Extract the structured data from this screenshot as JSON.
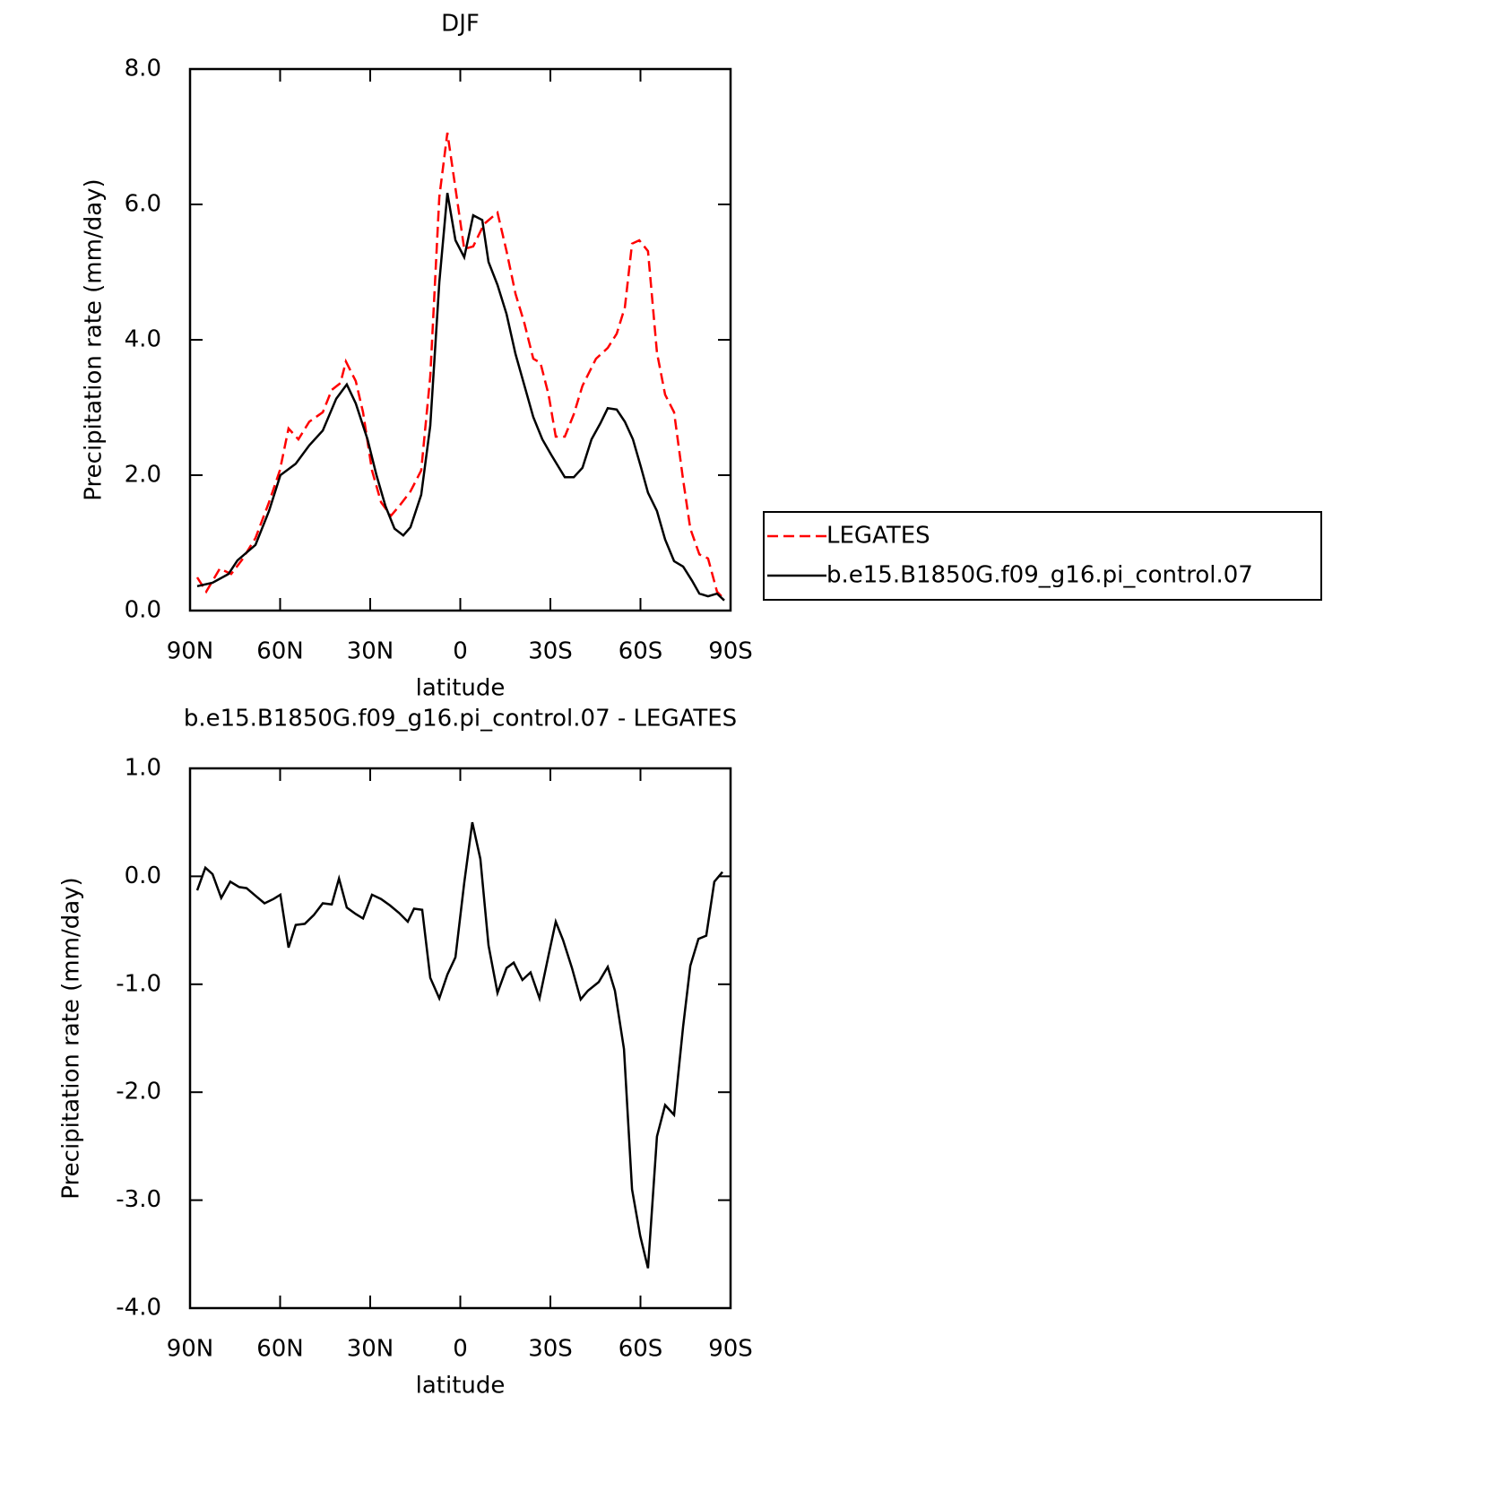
{
  "chart_data": [
    {
      "type": "line",
      "title": "DJF",
      "x_label": "latitude",
      "y_label": "Precipitation rate (mm/day)",
      "xlim": [
        90,
        -90
      ],
      "xticks": [
        {
          "value": 90,
          "label": "90N"
        },
        {
          "value": 60,
          "label": "60N"
        },
        {
          "value": 30,
          "label": "30N"
        },
        0,
        {
          "value": -30,
          "label": "30S"
        },
        {
          "value": -60,
          "label": "60S"
        },
        {
          "value": -90,
          "label": "90S"
        }
      ],
      "ylim": [
        0,
        8
      ],
      "yticks": [
        {
          "value": 0,
          "label": "0.0"
        },
        {
          "value": 2,
          "label": "2.0"
        },
        {
          "value": 4,
          "label": "4.0"
        },
        {
          "value": 6,
          "label": "6.0"
        },
        {
          "value": 8,
          "label": "8.0"
        }
      ],
      "legend": "outside-right",
      "series": [
        {
          "name": "LEGATES",
          "color": "#ff0000",
          "dashed": true,
          "x": [
            87.6,
            84.6,
            80.1,
            76.3,
            72.7,
            68.2,
            63.7,
            60.1,
            57.2,
            53.9,
            50.3,
            45.8,
            42.8,
            39.9,
            38.1,
            34.8,
            32.4,
            29.4,
            26.4,
            23.1,
            20.4,
            16.6,
            13,
            10,
            7,
            4.3,
            1.6,
            -1.3,
            -4.3,
            -7.9,
            -12.4,
            -15.4,
            -18.4,
            -21.3,
            -24.3,
            -26.7,
            -29.4,
            -31.8,
            -34.8,
            -37.8,
            -40.7,
            -45.2,
            -49.1,
            -52.1,
            -54.8,
            -57.2,
            -59.6,
            -62.5,
            -65.5,
            -68.2,
            -71.2,
            -74.2,
            -76.6,
            -79.6,
            -82.5,
            -85.5,
            -87.9
          ],
          "values": [
            0.49,
            0.28,
            0.62,
            0.54,
            0.75,
            1.07,
            1.6,
            2.07,
            2.69,
            2.53,
            2.79,
            2.93,
            3.26,
            3.36,
            3.68,
            3.39,
            2.93,
            2.07,
            1.6,
            1.4,
            1.54,
            1.76,
            2.07,
            3.46,
            6.11,
            7.06,
            6.24,
            5.34,
            5.38,
            5.71,
            5.88,
            5.31,
            4.68,
            4.25,
            3.72,
            3.66,
            3.19,
            2.57,
            2.57,
            2.9,
            3.32,
            3.72,
            3.88,
            4.09,
            4.48,
            5.42,
            5.47,
            5.31,
            3.81,
            3.19,
            2.93,
            1.93,
            1.21,
            0.83,
            0.77,
            0.28,
            0.17
          ]
        },
        {
          "name": "b.e15.B1850G.f09_g16.pi_control.07",
          "color": "#000000",
          "dashed": false,
          "x": [
            87.6,
            82.5,
            77.2,
            74.2,
            68.2,
            63.7,
            59.9,
            54.8,
            50.3,
            45.8,
            41.3,
            37.8,
            34.8,
            30.9,
            27.9,
            24.9,
            21.9,
            19,
            16.6,
            13,
            10,
            7,
            4.3,
            1.6,
            -1.3,
            -4.3,
            -7.3,
            -9.4,
            -12.4,
            -15.4,
            -18.4,
            -22.2,
            -24.3,
            -27.3,
            -30.3,
            -34.8,
            -37.8,
            -40.7,
            -43.7,
            -46.7,
            -49.1,
            -52.1,
            -54.8,
            -57.5,
            -60.1,
            -62.5,
            -65.5,
            -68.2,
            -71.2,
            -74.2,
            -77.2,
            -79.6,
            -82.5,
            -85.5,
            -87.9
          ],
          "values": [
            0.36,
            0.41,
            0.54,
            0.74,
            0.97,
            1.47,
            2.0,
            2.17,
            2.44,
            2.66,
            3.13,
            3.34,
            3.06,
            2.53,
            2.0,
            1.54,
            1.21,
            1.11,
            1.23,
            1.71,
            2.73,
            4.85,
            6.17,
            5.47,
            5.22,
            5.84,
            5.77,
            5.15,
            4.81,
            4.38,
            3.79,
            3.19,
            2.86,
            2.53,
            2.3,
            1.97,
            1.97,
            2.11,
            2.53,
            2.77,
            2.99,
            2.97,
            2.79,
            2.53,
            2.13,
            1.74,
            1.47,
            1.05,
            0.73,
            0.65,
            0.44,
            0.25,
            0.21,
            0.25,
            0.15
          ]
        }
      ]
    },
    {
      "type": "line",
      "title": "b.e15.B1850G.f09_g16.pi_control.07 - LEGATES",
      "x_label": "latitude",
      "y_label": "Precipitation rate (mm/day)",
      "xlim": [
        90,
        -90
      ],
      "xticks": [
        {
          "value": 90,
          "label": "90N"
        },
        {
          "value": 60,
          "label": "60N"
        },
        {
          "value": 30,
          "label": "30N"
        },
        0,
        {
          "value": -30,
          "label": "30S"
        },
        {
          "value": -60,
          "label": "60S"
        },
        {
          "value": -90,
          "label": "90S"
        }
      ],
      "ylim": [
        -4,
        1
      ],
      "yticks": [
        {
          "value": -4,
          "label": "-4.0"
        },
        {
          "value": -3,
          "label": "-3.0"
        },
        {
          "value": -2,
          "label": "-2.0"
        },
        {
          "value": -1,
          "label": "-1.0"
        },
        {
          "value": 0,
          "label": "0.0"
        },
        {
          "value": 1,
          "label": "1.0"
        }
      ],
      "series": [
        {
          "color": "#000000",
          "dashed": false,
          "x": [
            87.6,
            84.9,
            82.5,
            79.6,
            76.6,
            73.6,
            71.2,
            68.2,
            65.2,
            62.2,
            59.9,
            57.2,
            54.8,
            51.8,
            48.8,
            45.8,
            42.8,
            40.4,
            37.8,
            34.8,
            32.4,
            29.4,
            26.4,
            23.4,
            20.4,
            17.5,
            15.4,
            12.7,
            10,
            7,
            4.3,
            1.6,
            -1.3,
            -4.0,
            -6.7,
            -9.4,
            -12.4,
            -15.4,
            -17.8,
            -20.7,
            -23.4,
            -26.4,
            -29.4,
            -31.8,
            -34.2,
            -37.2,
            -40.1,
            -42.5,
            -46.1,
            -49.1,
            -51.5,
            -54.5,
            -57.2,
            -59.9,
            -62.5,
            -65.5,
            -68.2,
            -71.2,
            -74.2,
            -76.6,
            -79.3,
            -81.9,
            -84.6,
            -87.3
          ],
          "values": [
            -0.13,
            0.08,
            0.02,
            -0.2,
            -0.05,
            -0.1,
            -0.11,
            -0.18,
            -0.25,
            -0.21,
            -0.17,
            -0.66,
            -0.45,
            -0.44,
            -0.36,
            -0.25,
            -0.26,
            -0.02,
            -0.29,
            -0.35,
            -0.39,
            -0.17,
            -0.21,
            -0.27,
            -0.34,
            -0.42,
            -0.3,
            -0.31,
            -0.94,
            -1.13,
            -0.91,
            -0.75,
            -0.06,
            0.5,
            0.16,
            -0.64,
            -1.08,
            -0.85,
            -0.8,
            -0.96,
            -0.89,
            -1.13,
            -0.73,
            -0.42,
            -0.59,
            -0.85,
            -1.14,
            -1.06,
            -0.98,
            -0.84,
            -1.06,
            -1.6,
            -2.9,
            -3.33,
            -3.63,
            -2.41,
            -2.12,
            -2.21,
            -1.39,
            -0.83,
            -0.58,
            -0.55,
            -0.05,
            0.04
          ]
        }
      ]
    }
  ]
}
